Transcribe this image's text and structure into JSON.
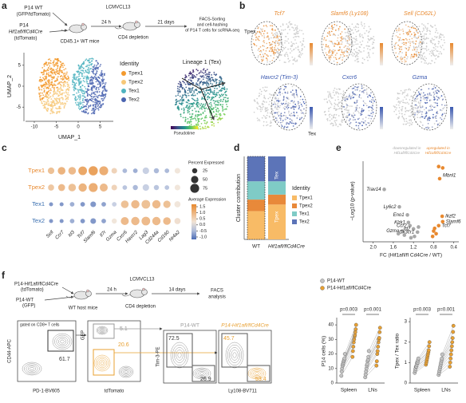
{
  "panel_labels": [
    "a",
    "b",
    "c",
    "d",
    "e",
    "f"
  ],
  "a": {
    "schema": {
      "donor_wt": "P14 WT",
      "donor_wt_note": "(GFP/tdTomato)",
      "donor_ko": "P14",
      "donor_ko_gene": "Hif1afl/flCd4Cre",
      "donor_ko_note": "(tdTomato)",
      "recipient": "CD45.1+ WT mice",
      "infection": "LCMVCL13",
      "time1": "24 h",
      "treatment": "CD4 depletion",
      "time2": "21 days",
      "readout": [
        "FACS-Sorting",
        "and cell-hashing",
        "of P14 T cells for scRNA-seq"
      ]
    },
    "umap": {
      "xlabel": "UMAP_1",
      "ylabel": "UMAP_2",
      "xlim": [
        -12,
        8
      ],
      "ylim": [
        -8,
        8
      ],
      "xticks": [
        -10,
        -5,
        0,
        5
      ],
      "yticks": [
        -5,
        0,
        5
      ],
      "legend_title": "Identity",
      "identities": [
        {
          "name": "Tpex1",
          "color": "#f39a2e"
        },
        {
          "name": "Tpex2",
          "color": "#f7c878"
        },
        {
          "name": "Tex1",
          "color": "#4fb3c0"
        },
        {
          "name": "Tex2",
          "color": "#4a64b0"
        }
      ]
    },
    "lineage": {
      "title": "Lineage 1 (Tex)",
      "colorbar_label": "Pseudotime"
    }
  },
  "b": {
    "row_top": "Tpex",
    "row_bottom": "Tex",
    "genes": [
      {
        "name": "Tcf7",
        "color": "#e8892f"
      },
      {
        "name": "Slamf6 (Ly108)",
        "color": "#e8892f"
      },
      {
        "name": "Sell (CD62L)",
        "color": "#e8892f"
      },
      {
        "name": "Havcr2 (Tim-3)",
        "color": "#3a58b0"
      },
      {
        "name": "Cxcr6",
        "color": "#3a58b0"
      },
      {
        "name": "Gzma",
        "color": "#3a58b0"
      }
    ]
  },
  "c": {
    "genes": [
      "Sell",
      "Ccr7",
      "Id3",
      "Tcf7",
      "Slamf6",
      "Il7r",
      "Gzma",
      "Cxcr6",
      "Havcr2",
      "Lag3",
      "Cd244a",
      "Cd160",
      "Nr4a2"
    ],
    "clusters": [
      {
        "name": "Tpex1",
        "color": "#e8892f"
      },
      {
        "name": "Tpex2",
        "color": "#e8892f"
      },
      {
        "name": "Tex1",
        "color": "#3a6fb0"
      },
      {
        "name": "Tex2",
        "color": "#3a6fb0"
      }
    ],
    "percent_expressed": [
      [
        40,
        55,
        55,
        70,
        80,
        75,
        30,
        20,
        20,
        40,
        25,
        20,
        30
      ],
      [
        35,
        45,
        55,
        65,
        75,
        60,
        30,
        20,
        25,
        40,
        25,
        20,
        30
      ],
      [
        15,
        15,
        20,
        20,
        30,
        20,
        20,
        55,
        65,
        70,
        65,
        50,
        35
      ],
      [
        15,
        15,
        20,
        20,
        30,
        20,
        25,
        60,
        65,
        70,
        65,
        55,
        35
      ]
    ],
    "average_expression": [
      [
        0.8,
        1.0,
        0.9,
        1.2,
        1.3,
        1.1,
        0.5,
        -0.5,
        -0.6,
        -0.3,
        -0.5,
        -0.5,
        0.2
      ],
      [
        0.7,
        0.9,
        0.8,
        1.0,
        1.1,
        0.9,
        0.5,
        -0.4,
        -0.5,
        -0.3,
        -0.4,
        -0.4,
        0.2
      ],
      [
        -0.8,
        -0.8,
        -0.6,
        -0.8,
        -0.8,
        -0.7,
        -0.3,
        0.8,
        0.9,
        0.8,
        0.9,
        0.8,
        0.2
      ],
      [
        -0.8,
        -0.8,
        -0.6,
        -0.8,
        -0.8,
        -0.7,
        0.2,
        0.9,
        0.9,
        0.9,
        0.9,
        0.9,
        0.3
      ]
    ],
    "size_legend_title": "Percent Expressed",
    "size_legend": [
      25,
      50,
      75
    ],
    "color_legend_title": "Average Expression",
    "clim": [
      -1.2,
      1.7
    ],
    "color_ticks": [
      1.5,
      {
        "value": 1,
        "label": "1.0"
      },
      0.5,
      {
        "value": 0,
        "label": "0.0"
      },
      -0.5,
      {
        "value": -1,
        "label": "-1.0"
      }
    ],
    "color_low": "#4a6bb5",
    "color_mid": "#f2f2f2",
    "color_high": "#e8892f"
  },
  "d": {
    "chart_data": {
      "type": "stacked_bar",
      "ylabel": "Cluster contribution",
      "categories": [
        "WT",
        "Hif1afl/flCd4Cre"
      ],
      "ylim": [
        0,
        100
      ],
      "series": [
        {
          "name": "Tpex1",
          "color": "#f8bb66",
          "values": [
            34,
            42
          ]
        },
        {
          "name": "Tpex2",
          "color": "#e8893a",
          "values": [
            14,
            12
          ]
        },
        {
          "name": "Tex1",
          "color": "#7fcbc6",
          "values": [
            22,
            16
          ]
        },
        {
          "name": "Tex2",
          "color": "#5c74b8",
          "values": [
            30,
            30
          ]
        }
      ],
      "legend_title": "Identity",
      "group_labels": [
        "Tex",
        "Tpex"
      ]
    }
  },
  "e": {
    "chart_data": {
      "type": "scatter",
      "xlabel": "FC (Hif1afl/fl Cd4Cre / WT)",
      "ylabel": "−Log10 (p-value)",
      "xlim": [
        2.2,
        0.3
      ],
      "ylim": [
        0,
        300
      ],
      "xticks": [
        {
          "value": 2,
          "label": "2.0"
        },
        1.6,
        1.2,
        0.8,
        0.4
      ],
      "groups": [
        {
          "note": [
            "downregulated in",
            "Hif1afl/flCd4Cre"
          ],
          "color": "#a8a8a8",
          "x": [
            1.78,
            1.48,
            1.32,
            1.3,
            1.27,
            1.42,
            1.2,
            1.12,
            1.5,
            1.38,
            1.18,
            1.1,
            1.25
          ],
          "y": [
            195,
            130,
            100,
            72,
            60,
            40,
            48,
            36,
            30,
            25,
            20,
            55,
            15
          ],
          "labels": [
            "Trav14",
            "Ly6c2",
            "Eno1",
            "Klrk1",
            "Ccr2",
            "Gzma",
            "Id2",
            "Cx3cr1",
            null,
            null,
            null,
            null,
            null
          ]
        },
        {
          "note": [
            "upregulated in",
            "Hif1afl/flCd4Cre"
          ],
          "color": "#e8892f",
          "x": [
            0.68,
            0.63,
            0.62,
            0.7,
            0.8,
            0.75,
            0.82,
            0.78,
            0.62,
            0.7
          ],
          "y": [
            235,
            95,
            75,
            60,
            40,
            30,
            20,
            50,
            275,
            280
          ],
          "labels": [
            "Mbnl1",
            "Ikzf2",
            "Slamf6",
            "Tcf7",
            null,
            null,
            null,
            null,
            null,
            null
          ]
        }
      ]
    }
  },
  "f": {
    "schema": {
      "donor_ko": "P14-Hif1afl/flCd4Cre",
      "donor_ko_note": "(tdTomato)",
      "donor_wt": "P14-WT",
      "donor_wt_note": "(GFP)",
      "host": "WT host mice",
      "infection": "LCMVCL13",
      "time1": "24 h",
      "treatment": "CD4 depletion",
      "time2": "14 days",
      "readout": [
        "FACS",
        "analysis"
      ]
    },
    "flow": {
      "gate_note": "gated on CD8+ T cells",
      "shared_xlabel": "Ly108-BV711",
      "plots": [
        {
          "xlabel": "PD-1-BV605",
          "ylabel": "CD44-APC",
          "gates": [
            61.7
          ],
          "gate_colors": [
            "#333333"
          ]
        },
        {
          "xlabel": "tdTomato",
          "ylabel": "GFP",
          "gates": [
            5.1,
            20.6
          ],
          "gate_colors": [
            "#999999",
            "#e8a032"
          ]
        },
        {
          "title": "P14-WT",
          "title_color": "#999999",
          "ylabel": "Tim-3-PE",
          "gates": [
            72.5,
            26.9
          ],
          "gate_colors": [
            "#333333",
            "#333333"
          ]
        },
        {
          "title": "P14-Hif1afl/flCd4Cre",
          "title_color": "#e8a032",
          "gates": [
            45.7,
            53.4
          ],
          "gate_colors": [
            "#e8a032",
            "#e8a032"
          ]
        }
      ]
    },
    "summary": {
      "legend": [
        {
          "name": "P14-WT",
          "color": "#c4c4c4"
        },
        {
          "name": "P14-Hif1afl/flCd4Cre",
          "color": "#e8a032"
        }
      ],
      "plots": [
        {
          "ylabel": "P14 cells (%)",
          "categories": [
            "Spleen",
            "LNs"
          ],
          "ylim": [
            0,
            45
          ],
          "yticks": [
            0,
            10,
            20,
            30,
            40
          ],
          "pvalues": [
            "p=0.003",
            "p=0.001"
          ],
          "wt": [
            [
              5,
              8,
              10,
              12,
              13,
              14,
              15,
              16,
              17,
              20
            ],
            [
              4,
              6,
              8,
              10,
              12,
              13,
              15,
              16,
              18,
              22
            ]
          ],
          "ko": [
            [
              18,
              22,
              25,
              28,
              30,
              32,
              33,
              35,
              37,
              40
            ],
            [
              12,
              15,
              20,
              22,
              25,
              28,
              30,
              31,
              35,
              38
            ]
          ]
        },
        {
          "ylabel": "Tpex / Tex ratio",
          "categories": [
            "Spleen",
            "LNs"
          ],
          "ylim": [
            0,
            3.2
          ],
          "yticks": [
            0,
            1,
            2,
            3
          ],
          "pvalues": [
            "p=0.003",
            "p=0.001"
          ],
          "wt": [
            [
              0.5,
              0.6,
              0.7,
              0.8,
              0.8,
              0.9,
              1.0,
              1.0,
              1.1,
              1.2
            ],
            [
              0.4,
              0.5,
              0.6,
              0.7,
              0.8,
              0.9,
              1.0,
              1.1,
              1.2,
              1.4
            ]
          ],
          "ko": [
            [
              0.9,
              1.0,
              1.1,
              1.2,
              1.3,
              1.4,
              1.5,
              1.6,
              1.8,
              2.0
            ],
            [
              0.8,
              1.0,
              1.2,
              1.4,
              1.6,
              1.8,
              2.0,
              2.2,
              2.5,
              2.8
            ]
          ]
        }
      ]
    }
  }
}
